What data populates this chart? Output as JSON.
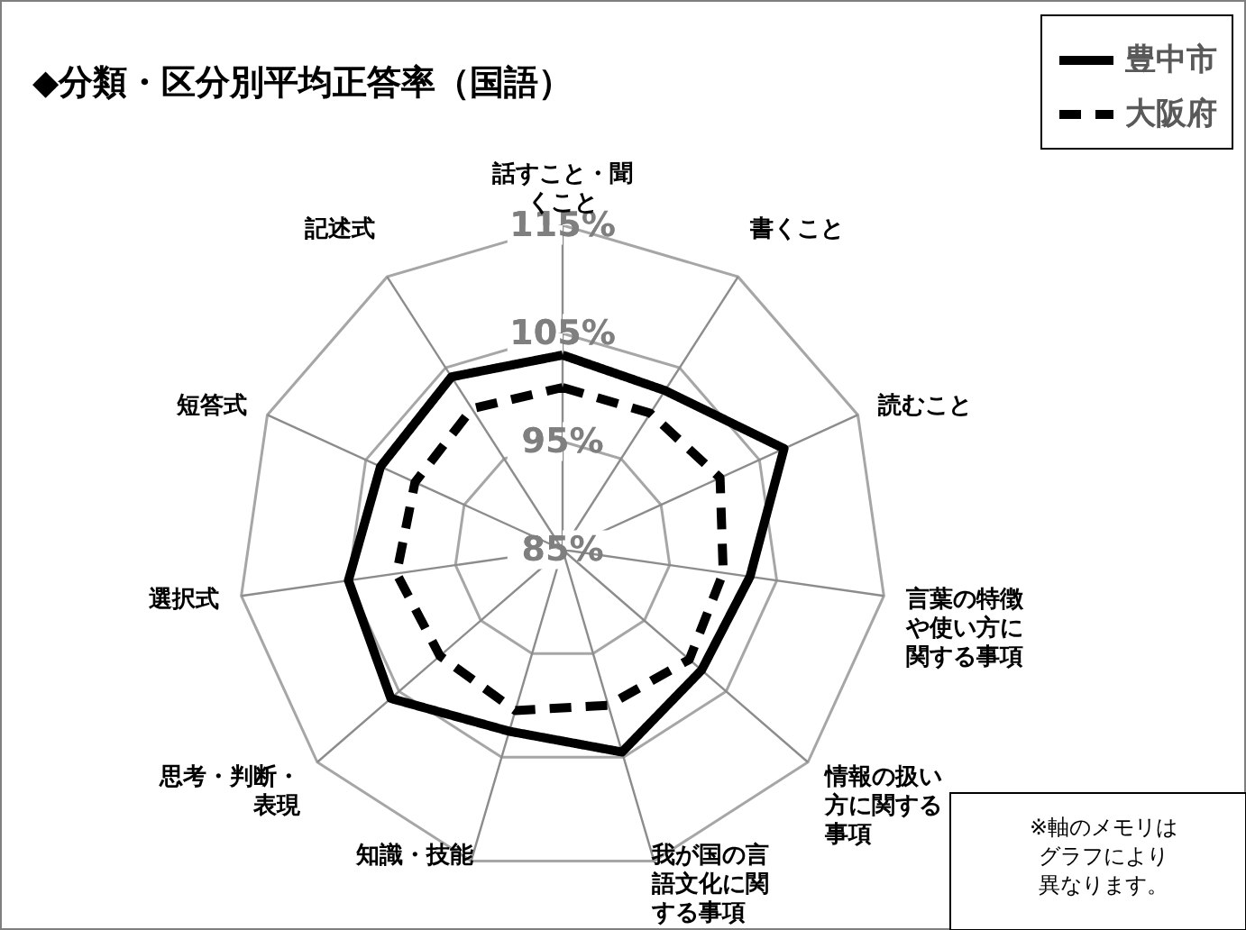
{
  "chart_data": {
    "type": "radar",
    "title": "◆分類・区分別平均正答率（国語）",
    "categories": [
      "話すこと・聞くこと",
      "書くこと",
      "読むこと",
      "言葉の特徴や使い方に関する事項",
      "情報の扱い方に関する事項",
      "我が国の言語文化に関する事項",
      "知識・技能",
      "思考・判断・表現",
      "選択式",
      "短答式",
      "記述式"
    ],
    "series": [
      {
        "name": "豊中市",
        "color": "#000000",
        "line_style": "solid",
        "values": [
          103,
          102.5,
          107.5,
          102.5,
          102,
          104.5,
          102.5,
          106,
          105,
          103.5,
          104
        ]
      },
      {
        "name": "大阪府",
        "color": "#000000",
        "line_style": "dashed",
        "values": [
          100,
          100,
          101,
          100,
          100.5,
          100,
          100.5,
          100,
          100.5,
          100,
          100.5
        ]
      }
    ],
    "ylim": [
      85,
      115
    ],
    "yticks": [
      {
        "value": 85,
        "label": "85%"
      },
      {
        "value": 95,
        "label": "95%"
      },
      {
        "value": 105,
        "label": "105%"
      },
      {
        "value": 115,
        "label": "115%"
      }
    ],
    "grid": true,
    "legend": "top right",
    "marker": "none",
    "annotations": [
      "※軸のメモリはグラフにより異なります。"
    ]
  }
}
